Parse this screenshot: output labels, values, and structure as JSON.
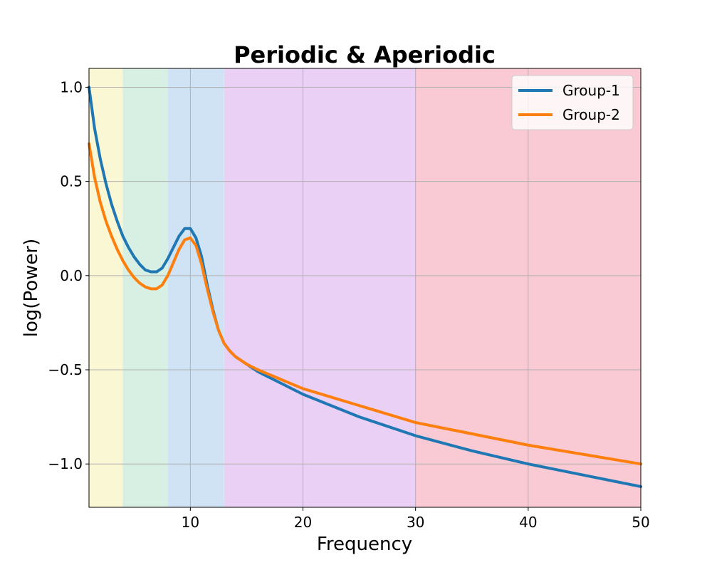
{
  "chart_data": {
    "type": "line",
    "title": "Periodic & Aperiodic",
    "xlabel": "Frequency",
    "ylabel": "log(Power)",
    "xlim": [
      1,
      50
    ],
    "ylim": [
      -1.23,
      1.1
    ],
    "xticks": [
      10,
      20,
      30,
      40,
      50
    ],
    "xtick_labels": [
      "10",
      "20",
      "30",
      "40",
      "50"
    ],
    "yticks": [
      1.0,
      0.5,
      0.0,
      -0.5,
      -1.0
    ],
    "ytick_labels": [
      "1.0",
      "0.5",
      "0.0",
      "−0.5",
      "−1.0"
    ],
    "grid": true,
    "legend_position": "top-right",
    "bands": [
      {
        "from": 1,
        "to": 4,
        "color": "#faf7d5"
      },
      {
        "from": 4,
        "to": 8,
        "color": "#d8f0e3"
      },
      {
        "from": 8,
        "to": 13,
        "color": "#cfe3f5"
      },
      {
        "from": 13,
        "to": 30,
        "color": "#ebd0f5"
      },
      {
        "from": 30,
        "to": 50,
        "color": "#f9cad3"
      }
    ],
    "series": [
      {
        "name": "Group-1",
        "color": "#1f77b4",
        "x": [
          1,
          1.5,
          2,
          2.5,
          3,
          3.5,
          4,
          4.5,
          5,
          5.5,
          6,
          6.5,
          7,
          7.5,
          8,
          8.5,
          9,
          9.5,
          10,
          10.5,
          11,
          11.5,
          12,
          12.5,
          13,
          13.5,
          14,
          15,
          16,
          18,
          20,
          25,
          30,
          35,
          40,
          45,
          50
        ],
        "y": [
          1.0,
          0.78,
          0.62,
          0.49,
          0.38,
          0.29,
          0.21,
          0.15,
          0.1,
          0.06,
          0.03,
          0.02,
          0.02,
          0.04,
          0.09,
          0.15,
          0.21,
          0.25,
          0.25,
          0.2,
          0.1,
          -0.05,
          -0.18,
          -0.29,
          -0.36,
          -0.4,
          -0.43,
          -0.47,
          -0.51,
          -0.57,
          -0.63,
          -0.75,
          -0.85,
          -0.93,
          -1.0,
          -1.06,
          -1.12
        ]
      },
      {
        "name": "Group-2",
        "color": "#ff7f0e",
        "x": [
          1,
          1.5,
          2,
          2.5,
          3,
          3.5,
          4,
          4.5,
          5,
          5.5,
          6,
          6.5,
          7,
          7.5,
          8,
          8.5,
          9,
          9.5,
          10,
          10.5,
          11,
          11.5,
          12,
          12.5,
          13,
          13.5,
          14,
          15,
          16,
          18,
          20,
          25,
          30,
          35,
          40,
          45,
          50
        ],
        "y": [
          0.7,
          0.52,
          0.39,
          0.29,
          0.21,
          0.14,
          0.08,
          0.03,
          -0.01,
          -0.04,
          -0.06,
          -0.07,
          -0.07,
          -0.05,
          0.0,
          0.07,
          0.14,
          0.19,
          0.2,
          0.16,
          0.06,
          -0.07,
          -0.19,
          -0.29,
          -0.36,
          -0.4,
          -0.43,
          -0.47,
          -0.5,
          -0.55,
          -0.6,
          -0.69,
          -0.78,
          -0.84,
          -0.9,
          -0.95,
          -1.0
        ]
      }
    ]
  }
}
